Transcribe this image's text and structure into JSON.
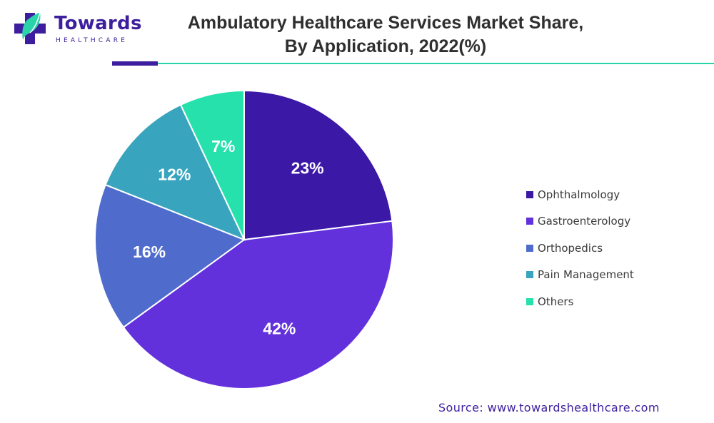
{
  "logo": {
    "name": "Towards",
    "sub": "HEALTHCARE",
    "colors": {
      "primary": "#3d1e9e",
      "accent": "#2ad3a8",
      "secondary": "#8a3ad9"
    }
  },
  "source": "Source: www.towardshealthcare.com",
  "chart_data": {
    "type": "pie",
    "title": "Ambulatory Healthcare Services Market Share,",
    "subtitle": "By Application, 2022(%)",
    "unit": "%",
    "legend_position": "right",
    "slices": [
      {
        "name": "Ophthalmology",
        "value": 23,
        "label": "23%",
        "color": "#3b18a6"
      },
      {
        "name": "Gastroenterology",
        "value": 42,
        "label": "42%",
        "color": "#6331dc"
      },
      {
        "name": "Orthopedics",
        "value": 16,
        "label": "16%",
        "color": "#4f6ccd"
      },
      {
        "name": "Pain Management",
        "value": 12,
        "label": "12%",
        "color": "#38a4bd"
      },
      {
        "name": "Others",
        "value": 7,
        "label": "7%",
        "color": "#27e1ad"
      }
    ]
  }
}
